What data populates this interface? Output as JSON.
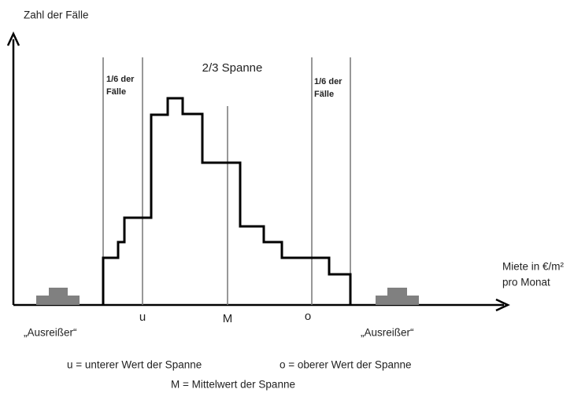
{
  "y_axis_label": "Zahl der Fälle",
  "x_axis_label": [
    "Miete in €/m²",
    "pro Monat"
  ],
  "span_label": "2/3 Spanne",
  "left_share": [
    "1/6 der",
    "Fälle"
  ],
  "right_share": [
    "1/6 der",
    "Fälle"
  ],
  "markers": {
    "u": "u",
    "m": "M",
    "o": "o"
  },
  "outliers": [
    "„Ausreißer“",
    "„Ausreißer“"
  ],
  "legend": [
    "u = unterer Wert der Spanne",
    "o = oberer Wert der Spanne",
    "M = Mittelwert der Spanne"
  ]
}
